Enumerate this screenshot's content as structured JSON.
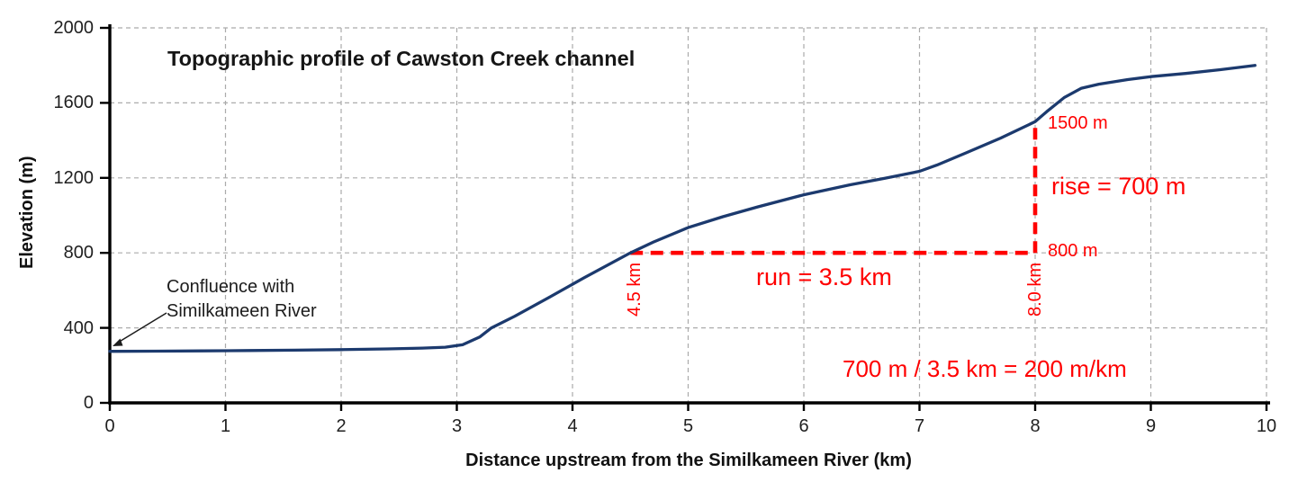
{
  "title": "Topographic profile of Cawston Creek channel",
  "axes": {
    "y_label": "Elevation (m)",
    "x_label": "Distance upstream from the Similkameen River (km)"
  },
  "annotations": {
    "confluence": {
      "line1": "Confluence with",
      "line2": "Similkameen River"
    },
    "slope": {
      "top_elevation_label": "1500 m",
      "base_elevation_label": "800 m",
      "rise_label": "rise = 700 m",
      "run_label": "run = 3.5 km",
      "start_distance_label": "4.5 km",
      "end_distance_label": "8.0 km",
      "gradient_formula": "700 m / 3.5 km = 200 m/km"
    }
  },
  "colors": {
    "profile_line": "#1c3a6e",
    "annotation_red": "#ff0000",
    "gridline": "#ababab",
    "axis": "#000000",
    "text": "#1f1f1f"
  },
  "chart_data": {
    "type": "line",
    "title": "Topographic profile of Cawston Creek channel",
    "xlabel": "Distance upstream from the Similkameen River (km)",
    "ylabel": "Elevation (m)",
    "xlim": [
      0,
      10
    ],
    "ylim": [
      0,
      2000
    ],
    "x_ticks": [
      0,
      1,
      2,
      3,
      4,
      5,
      6,
      7,
      8,
      9,
      10
    ],
    "y_ticks": [
      0,
      400,
      800,
      1200,
      1600,
      2000
    ],
    "grid": "dashed both axes",
    "legend": "none",
    "series": [
      {
        "name": "Cawston Creek channel elevation profile",
        "points": [
          [
            0,
            275
          ],
          [
            0.4,
            276
          ],
          [
            0.8,
            277
          ],
          [
            1.2,
            279
          ],
          [
            1.6,
            281
          ],
          [
            2.0,
            284
          ],
          [
            2.4,
            288
          ],
          [
            2.7,
            292
          ],
          [
            2.9,
            297
          ],
          [
            3.05,
            310
          ],
          [
            3.2,
            352
          ],
          [
            3.3,
            400
          ],
          [
            3.5,
            462
          ],
          [
            3.8,
            563
          ],
          [
            4.1,
            667
          ],
          [
            4.5,
            800
          ],
          [
            4.7,
            858
          ],
          [
            5.0,
            935
          ],
          [
            5.3,
            993
          ],
          [
            5.6,
            1045
          ],
          [
            6.0,
            1110
          ],
          [
            6.4,
            1163
          ],
          [
            6.7,
            1198
          ],
          [
            7.0,
            1235
          ],
          [
            7.15,
            1268
          ],
          [
            7.4,
            1333
          ],
          [
            7.7,
            1412
          ],
          [
            8.0,
            1500
          ],
          [
            8.1,
            1553
          ],
          [
            8.25,
            1628
          ],
          [
            8.4,
            1678
          ],
          [
            8.55,
            1700
          ],
          [
            8.8,
            1724
          ],
          [
            9.0,
            1740
          ],
          [
            9.3,
            1757
          ],
          [
            9.6,
            1777
          ],
          [
            9.9,
            1800
          ]
        ]
      }
    ],
    "annotations": {
      "run_from_km": 4.5,
      "run_to_km": 8.0,
      "base_elev_m": 800,
      "top_elev_m": 1500,
      "rise_m": 700,
      "run_km": 3.5,
      "gradient_m_per_km": 200,
      "confluence_point_km": 0,
      "confluence_point_m": 275
    }
  }
}
